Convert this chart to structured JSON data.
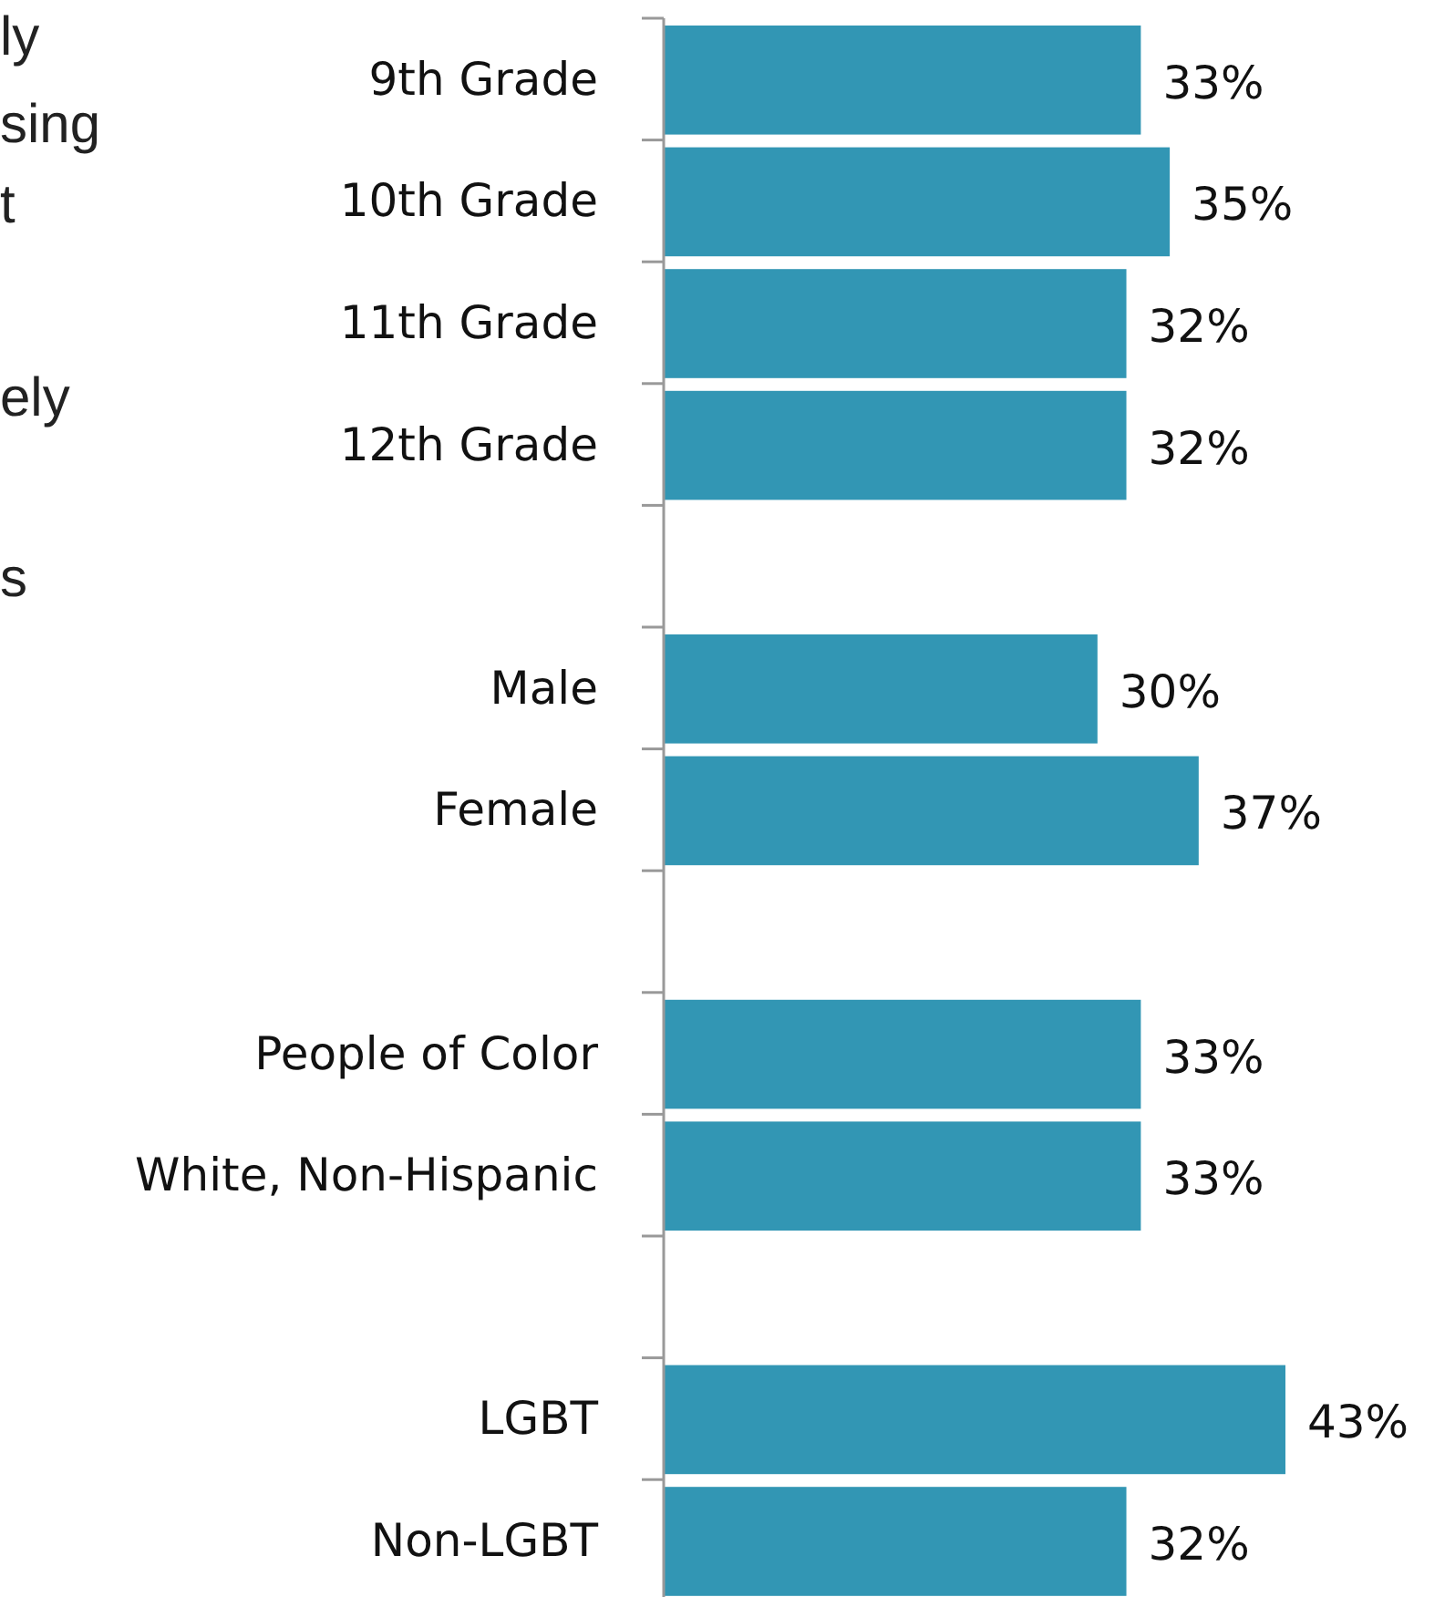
{
  "chart_data": {
    "type": "bar",
    "orientation": "horizontal",
    "relative": false,
    "categories": [
      "9th Grade",
      "10th Grade",
      "11th Grade",
      "12th Grade",
      null,
      "Male",
      "Female",
      null,
      "People of Color",
      "White, Non-Hispanic",
      null,
      "LGBT",
      "Non-LGBT"
    ],
    "values": [
      33,
      35,
      32,
      32,
      null,
      30,
      37,
      null,
      33,
      33,
      null,
      43,
      32
    ],
    "value_labels": [
      "33%",
      "35%",
      "32%",
      "32%",
      null,
      "30%",
      "37%",
      null,
      "33%",
      "33%",
      null,
      "43%",
      "32%"
    ],
    "color": "#3296b4",
    "annotations": [
      "ly",
      "sing",
      "t",
      "ely",
      "s"
    ]
  }
}
